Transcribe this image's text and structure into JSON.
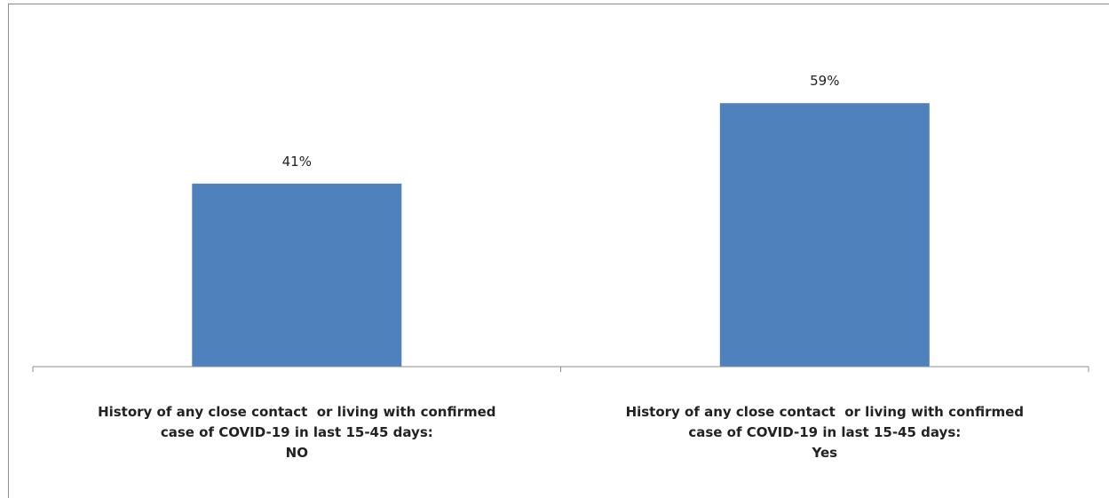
{
  "chart_data": {
    "type": "bar",
    "title": "",
    "xlabel": "",
    "ylabel": "",
    "categories": [
      [
        "History of any close contact  or living with confirmed",
        "case of COVID-19 in last 15-45 days:",
        "NO"
      ],
      [
        "History of any close contact  or living with confirmed",
        "case of COVID-19 in last 15-45 days:",
        "Yes"
      ]
    ],
    "values": [
      41,
      59
    ],
    "data_labels": [
      "41%",
      "59%"
    ],
    "unit": "%",
    "ylim": [
      0,
      70
    ],
    "grid": false,
    "legend": "none",
    "bar_color": "#4f81bd"
  }
}
